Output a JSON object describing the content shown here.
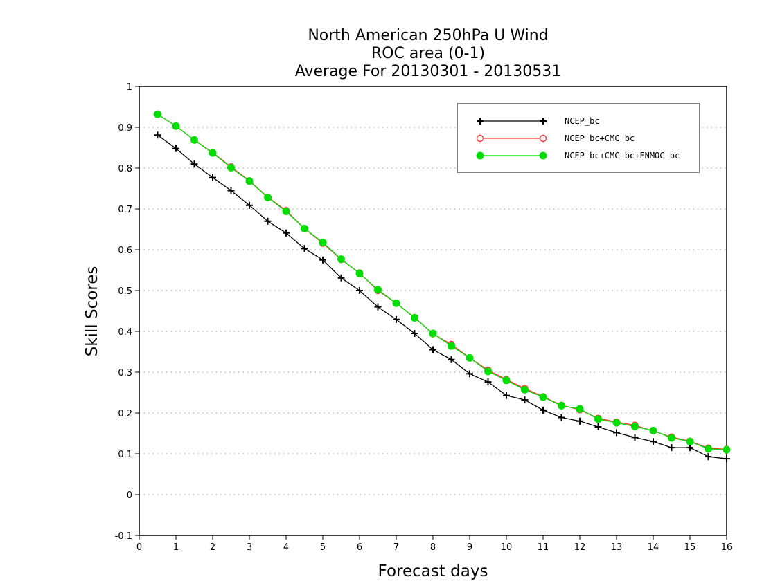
{
  "chart_data": {
    "type": "line",
    "title": [
      "North American 250hPa U Wind",
      "ROC area (0-1)",
      "Average For 20130301 - 20130531"
    ],
    "xlabel": "Forecast days",
    "ylabel": "Skill Scores",
    "xlim": [
      0,
      16
    ],
    "ylim": [
      -0.1,
      1
    ],
    "xticks": [
      0,
      1,
      2,
      3,
      4,
      5,
      6,
      7,
      8,
      9,
      10,
      11,
      12,
      13,
      14,
      15,
      16
    ],
    "yticks": [
      -0.1,
      0,
      0.1,
      0.2,
      0.3,
      0.4,
      0.5,
      0.6,
      0.7,
      0.8,
      0.9,
      1
    ],
    "ytick_labels": [
      "-0.1",
      "0",
      "0.1",
      "0.2",
      "0.3",
      "0.4",
      "0.5",
      "0.6",
      "0.7",
      "0.8",
      "0.9",
      "1"
    ],
    "grid": "horizontal dotted",
    "legend_position": "top-right",
    "x": [
      0.5,
      1,
      1.5,
      2,
      2.5,
      3,
      3.5,
      4,
      4.5,
      5,
      5.5,
      6,
      6.5,
      7,
      7.5,
      8,
      8.5,
      9,
      9.5,
      10,
      10.5,
      11,
      11.5,
      12,
      12.5,
      13,
      13.5,
      14,
      14.5,
      15,
      15.5,
      16
    ],
    "series": [
      {
        "name": "NCEP_bc",
        "color": "#000000",
        "marker": "plus",
        "values": [
          0.881,
          0.848,
          0.81,
          0.777,
          0.745,
          0.709,
          0.67,
          0.641,
          0.603,
          0.575,
          0.531,
          0.5,
          0.46,
          0.429,
          0.395,
          0.355,
          0.331,
          0.296,
          0.276,
          0.243,
          0.232,
          0.207,
          0.189,
          0.18,
          0.166,
          0.152,
          0.14,
          0.13,
          0.115,
          0.115,
          0.093,
          0.088
        ]
      },
      {
        "name": "NCEP_bc+CMC_bc",
        "color": "#ff3333",
        "marker": "open-circle",
        "values": [
          0.932,
          0.903,
          0.869,
          0.838,
          0.803,
          0.769,
          0.729,
          0.696,
          0.652,
          0.616,
          0.576,
          0.543,
          0.5,
          0.469,
          0.434,
          0.394,
          0.368,
          0.335,
          0.305,
          0.282,
          0.26,
          0.24,
          0.219,
          0.208,
          0.187,
          0.178,
          0.17,
          0.156,
          0.141,
          0.131,
          0.114,
          0.111
        ]
      },
      {
        "name": "NCEP_bc+CMC_bc+FNMOC_bc",
        "color": "#00dd00",
        "marker": "filled-circle",
        "values": [
          0.932,
          0.903,
          0.869,
          0.837,
          0.801,
          0.768,
          0.728,
          0.694,
          0.652,
          0.618,
          0.577,
          0.542,
          0.502,
          0.469,
          0.433,
          0.395,
          0.364,
          0.335,
          0.302,
          0.28,
          0.257,
          0.239,
          0.218,
          0.21,
          0.185,
          0.176,
          0.167,
          0.157,
          0.139,
          0.13,
          0.112,
          0.11
        ]
      }
    ]
  }
}
